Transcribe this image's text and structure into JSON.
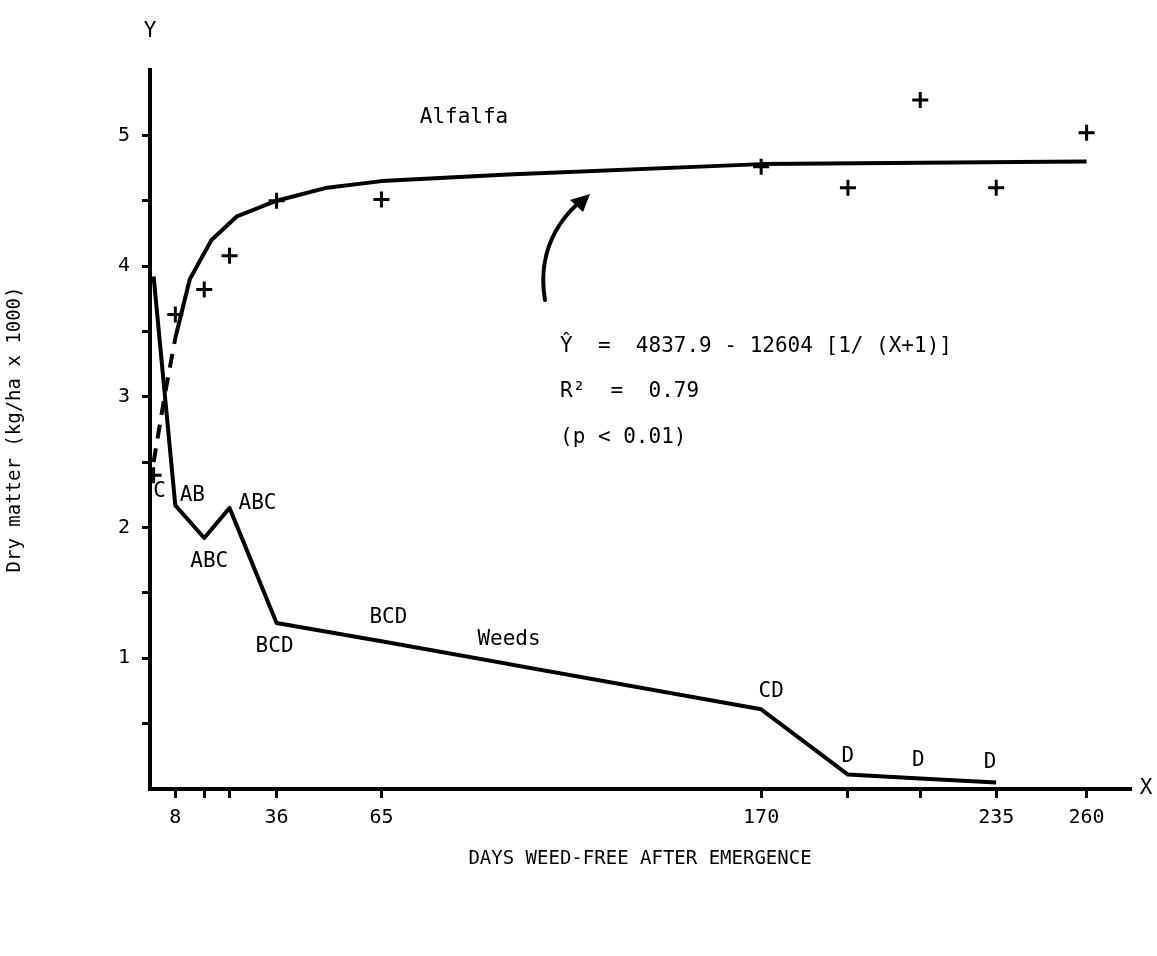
{
  "chart_data": {
    "type": "line",
    "xlabel": "DAYS WEED-FREE AFTER EMERGENCE",
    "ylabel": "Dry matter (kg/ha x 1000)",
    "xlim": [
      1,
      272
    ],
    "xticks": [
      8,
      {
        "value": 16,
        "label": null
      },
      {
        "value": 23,
        "label": null
      },
      36,
      65,
      170,
      {
        "value": 194,
        "label": null
      },
      {
        "value": 214,
        "label": null
      },
      235,
      260
    ],
    "ylim": [
      0,
      5.5
    ],
    "yticks": [
      {
        "value": 0.5,
        "label": null
      },
      1,
      {
        "value": 1.5,
        "label": null
      },
      2,
      {
        "value": 2.5,
        "label": null
      },
      3,
      {
        "value": 3.5,
        "label": null
      },
      4,
      {
        "value": 4.5,
        "label": null
      },
      5
    ],
    "grid": false,
    "legend": false,
    "series": [
      {
        "type": "scatter",
        "marker": "cross",
        "color": "#000000",
        "x": [
          2,
          8,
          16,
          23,
          36,
          65,
          170,
          194,
          214,
          235,
          260
        ],
        "values": [
          2.4,
          3.63,
          3.82,
          4.08,
          4.5,
          4.51,
          4.76,
          4.6,
          5.27,
          4.6,
          5.02
        ]
      },
      {
        "line_style": "solid",
        "color": "#000000",
        "x": [
          8,
          12,
          18,
          25,
          36,
          50,
          65,
          100,
          170,
          260
        ],
        "values": [
          3.45,
          3.9,
          4.2,
          4.38,
          4.5,
          4.6,
          4.65,
          4.7,
          4.78,
          4.8
        ]
      },
      {
        "line_style": "dashed",
        "color": "#000000",
        "x": [
          2,
          5,
          8
        ],
        "values": [
          2.5,
          3.0,
          3.45
        ]
      },
      {
        "line_style": "solid",
        "color": "#000000",
        "x": [
          2,
          8,
          16,
          23,
          36,
          65,
          170,
          194,
          214,
          235
        ],
        "values": [
          3.92,
          2.17,
          1.92,
          2.15,
          1.27,
          1.13,
          0.61,
          0.11,
          0.08,
          0.05
        ]
      }
    ],
    "annotations": [
      "Y",
      "X",
      "Ŷ  =  4837.9 - 12604 [1/ (X+1)]",
      "R²  =  0.79",
      "(p < 0.01)",
      "Alfalfa",
      "Weeds",
      {
        "text": "C",
        "x": 2,
        "y": 2.4
      },
      {
        "text": "AB",
        "x": 8,
        "y": 2.17
      },
      {
        "text": "ABC",
        "x": 23,
        "y": 2.15
      },
      {
        "text": "ABC",
        "x": 16,
        "y": 1.92
      },
      {
        "text": "BCD",
        "x": 36,
        "y": 1.27
      },
      {
        "text": "BCD",
        "x": 65,
        "y": 1.13
      },
      {
        "text": "CD",
        "x": 170,
        "y": 0.61
      },
      {
        "text": "D",
        "x": 194,
        "y": 0.11
      },
      {
        "text": "D",
        "x": 214,
        "y": 0.08
      },
      {
        "text": "D",
        "x": 235,
        "y": 0.05
      }
    ]
  }
}
